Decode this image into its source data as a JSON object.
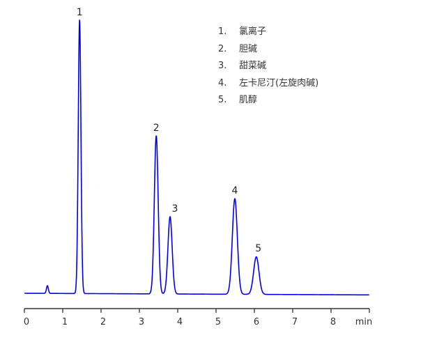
{
  "chart_data": {
    "type": "line",
    "title": "",
    "xlabel": "min",
    "ylabel": "",
    "xlim": [
      0,
      9
    ],
    "xticks": [
      0,
      1,
      2,
      3,
      4,
      5,
      6,
      7,
      8
    ],
    "ylim": [
      -5,
      105
    ],
    "grid": false,
    "line_color": "#0000ee",
    "legend_position": "top-right",
    "legend": [
      {
        "num": "1.",
        "label": "氯离子"
      },
      {
        "num": "2.",
        "label": "胆碱"
      },
      {
        "num": "3.",
        "label": "甜菜碱"
      },
      {
        "num": "4.",
        "label": "左卡尼汀(左旋肉碱)"
      },
      {
        "num": "5.",
        "label": "肌醇"
      }
    ],
    "peaks": [
      {
        "label": "",
        "rt": 0.6,
        "height": 2.8,
        "width": 0.025
      },
      {
        "label": "1",
        "rt": 1.44,
        "height": 100,
        "width": 0.035
      },
      {
        "label": "2",
        "rt": 3.44,
        "height": 57.8,
        "width": 0.05
      },
      {
        "label": "3",
        "rt": 3.8,
        "height": 28.2,
        "width": 0.055
      },
      {
        "label": "4",
        "rt": 5.49,
        "height": 34.9,
        "width": 0.065
      },
      {
        "label": "5",
        "rt": 6.05,
        "height": 13.7,
        "width": 0.07
      }
    ],
    "baseline_drift_end": -0.6
  }
}
